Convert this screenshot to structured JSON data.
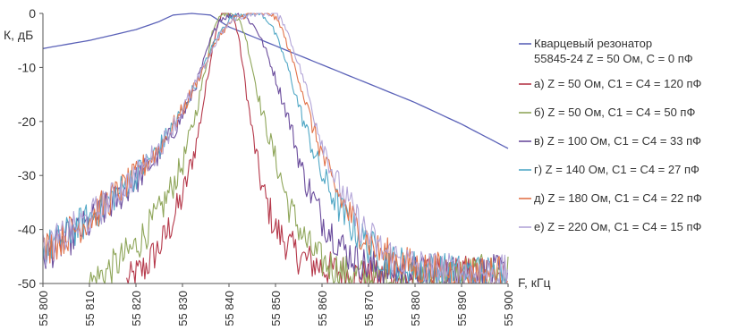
{
  "chart_data": {
    "type": "line",
    "title": "",
    "ylabel": "К, дБ",
    "xlabel": "F, кГц",
    "xlim": [
      55800,
      55900
    ],
    "ylim": [
      -50,
      0
    ],
    "grid": false,
    "legend_placement": "right",
    "y_ticks": [
      "0",
      "-10",
      "-20",
      "-30",
      "-40",
      "-50"
    ],
    "x_ticks": [
      "55 800",
      "55 810",
      "55 820",
      "55 830",
      "55 840",
      "55 850",
      "55 860",
      "55 870",
      "55 880",
      "55 890",
      "55 900"
    ],
    "series": [
      {
        "name": "Кварцевый резонатор",
        "name2": "55845-24  Z = 50 Ом, C = 0 пФ",
        "color": "#5b62b8",
        "x": [
          55800,
          55810,
          55820,
          55825,
          55828,
          55832,
          55836,
          55840,
          55850,
          55860,
          55870,
          55880,
          55890,
          55900
        ],
        "y": [
          -6.5,
          -5,
          -3,
          -1.5,
          -0.3,
          0,
          -0.3,
          -2.5,
          -6,
          -9.5,
          -13,
          -16.5,
          -20.5,
          -25
        ]
      },
      {
        "name": "а) Z = 50 Ом, C1 = C4 = 120 пФ",
        "color": "#b5384a",
        "x": [
          55818,
          55822,
          55826,
          55830,
          55833,
          55835,
          55836.5,
          55837.5,
          55838.5,
          55840,
          55841,
          55842,
          55843,
          55845,
          55847,
          55850,
          55855,
          55860,
          55870,
          55880,
          55890,
          55900
        ],
        "y": [
          -50,
          -47,
          -42,
          -34,
          -24,
          -14,
          -6,
          -2,
          0,
          0,
          -1,
          -4,
          -10,
          -22,
          -32,
          -40,
          -45,
          -47,
          -49,
          -49,
          -48,
          -48
        ]
      },
      {
        "name": "б) Z = 50 Ом, C1 = C4 = 50 пФ",
        "color": "#8fa65a",
        "x": [
          55810,
          55815,
          55820,
          55825,
          55830,
          55833,
          55835,
          55836.5,
          55838,
          55840,
          55842,
          55843.5,
          55845,
          55847,
          55850,
          55853,
          55857,
          55860,
          55865,
          55870,
          55880,
          55890,
          55900
        ],
        "y": [
          -50,
          -47,
          -43,
          -37,
          -28,
          -18,
          -10,
          -3,
          0,
          0,
          -1,
          -4,
          -10,
          -18,
          -27,
          -36,
          -43,
          -46,
          -48,
          -49,
          -49,
          -48,
          -48
        ]
      },
      {
        "name": "в) Z = 100 Ом, C1 = C4 = 33 пФ",
        "color": "#6a4c9c",
        "x": [
          55800,
          55805,
          55810,
          55815,
          55820,
          55825,
          55830,
          55833,
          55836,
          55838,
          55842,
          55844,
          55846,
          55848,
          55850,
          55853,
          55856,
          55860,
          55865,
          55870,
          55880,
          55890,
          55900
        ],
        "y": [
          -45,
          -42,
          -39,
          -35,
          -31,
          -26,
          -19,
          -13,
          -5,
          -1,
          0,
          -1,
          -3,
          -7,
          -12,
          -20,
          -30,
          -38,
          -44,
          -47,
          -48,
          -48,
          -48
        ]
      },
      {
        "name": "г) Z = 140 Ом, C1 = C4 = 27 пФ",
        "color": "#52a8c6",
        "x": [
          55800,
          55805,
          55810,
          55815,
          55820,
          55825,
          55830,
          55834,
          55837,
          55840,
          55843,
          55847,
          55849,
          55851,
          55853,
          55856,
          55860,
          55865,
          55870,
          55875,
          55880,
          55890,
          55900
        ],
        "y": [
          -44,
          -41,
          -38,
          -34,
          -30,
          -25,
          -18,
          -11,
          -5,
          -1,
          0,
          0,
          -2,
          -6,
          -11,
          -20,
          -30,
          -38,
          -43,
          -46,
          -47,
          -48,
          -48
        ]
      },
      {
        "name": "д) Z = 180 Ом, C1 = C4 = 22 пФ",
        "color": "#e2734a",
        "x": [
          55800,
          55805,
          55810,
          55815,
          55820,
          55825,
          55830,
          55834,
          55838,
          55841,
          55845,
          55849,
          55851,
          55853,
          55855,
          55858,
          55862,
          55867,
          55872,
          55877,
          55880,
          55890,
          55900
        ],
        "y": [
          -44,
          -41,
          -38,
          -34,
          -30,
          -25,
          -18,
          -11,
          -4,
          -1,
          0,
          0,
          -2,
          -7,
          -12,
          -21,
          -31,
          -39,
          -44,
          -46,
          -47,
          -48,
          -48
        ]
      },
      {
        "name": "е) Z = 220 Ом, C1 = C4 = 15 пФ",
        "color": "#b3a5d8",
        "x": [
          55800,
          55805,
          55810,
          55815,
          55820,
          55825,
          55830,
          55834,
          55838,
          55841,
          55845,
          55850,
          55852,
          55854,
          55856,
          55859,
          55863,
          55868,
          55873,
          55878,
          55882,
          55890,
          55900
        ],
        "y": [
          -44,
          -41,
          -38,
          -34,
          -30,
          -25,
          -18,
          -11,
          -4,
          -1,
          0,
          0,
          -2,
          -7,
          -12,
          -21,
          -31,
          -39,
          -44,
          -46,
          -47,
          -48,
          -48
        ]
      }
    ]
  }
}
